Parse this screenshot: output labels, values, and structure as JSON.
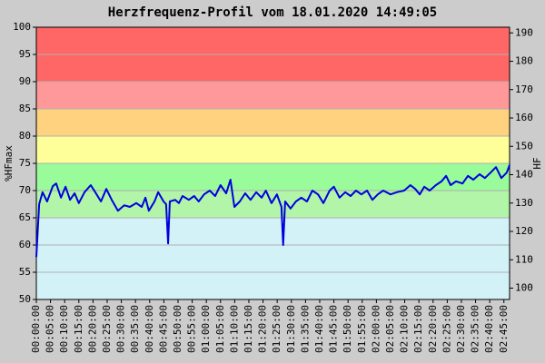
{
  "chart_data": {
    "type": "line",
    "title": "Herzfrequenz-Profil vom 18.01.2020 14:49:05",
    "ylabel": "%HFmax",
    "y2label": "HF",
    "xlim": [
      0,
      167
    ],
    "ylim": [
      50,
      100
    ],
    "yticks": [
      50,
      55,
      60,
      65,
      70,
      75,
      80,
      85,
      90,
      95,
      100
    ],
    "y2lim": [
      96,
      192
    ],
    "y2ticks": [
      100,
      110,
      120,
      130,
      140,
      150,
      160,
      170,
      180,
      190
    ],
    "grid": true,
    "bands": [
      {
        "from": 50,
        "to": 65,
        "color": "#d2f2f8"
      },
      {
        "from": 65,
        "to": 70,
        "color": "#b2f5a8"
      },
      {
        "from": 70,
        "to": 75,
        "color": "#99fb99"
      },
      {
        "from": 75,
        "to": 80,
        "color": "#ffff99"
      },
      {
        "from": 80,
        "to": 85,
        "color": "#ffd27f"
      },
      {
        "from": 85,
        "to": 90,
        "color": "#ff9999"
      },
      {
        "from": 90,
        "to": 100,
        "color": "#ff6666"
      }
    ],
    "xticks": [
      {
        "value": 0,
        "label": "00:00:00"
      },
      {
        "value": 5,
        "label": "00:05:00"
      },
      {
        "value": 10,
        "label": "00:10:00"
      },
      {
        "value": 15,
        "label": "00:15:00"
      },
      {
        "value": 20,
        "label": "00:20:00"
      },
      {
        "value": 25,
        "label": "00:25:00"
      },
      {
        "value": 30,
        "label": "00:30:00"
      },
      {
        "value": 35,
        "label": "00:35:00"
      },
      {
        "value": 40,
        "label": "00:40:00"
      },
      {
        "value": 45,
        "label": "00:45:00"
      },
      {
        "value": 50,
        "label": "00:50:00"
      },
      {
        "value": 55,
        "label": "00:55:00"
      },
      {
        "value": 60,
        "label": "01:00:00"
      },
      {
        "value": 65,
        "label": "01:05:00"
      },
      {
        "value": 70,
        "label": "01:10:00"
      },
      {
        "value": 75,
        "label": "01:15:00"
      },
      {
        "value": 80,
        "label": "01:20:00"
      },
      {
        "value": 85,
        "label": "01:25:00"
      },
      {
        "value": 90,
        "label": "01:30:00"
      },
      {
        "value": 95,
        "label": "01:35:00"
      },
      {
        "value": 100,
        "label": "01:40:00"
      },
      {
        "value": 105,
        "label": "01:45:00"
      },
      {
        "value": 110,
        "label": "01:50:00"
      },
      {
        "value": 115,
        "label": "01:55:00"
      },
      {
        "value": 120,
        "label": "02:00:00"
      },
      {
        "value": 125,
        "label": "02:05:00"
      },
      {
        "value": 130,
        "label": "02:10:00"
      },
      {
        "value": 135,
        "label": "02:15:00"
      },
      {
        "value": 140,
        "label": "02:20:00"
      },
      {
        "value": 145,
        "label": "02:25:00"
      },
      {
        "value": 150,
        "label": "02:30:00"
      },
      {
        "value": 155,
        "label": "02:35:00"
      },
      {
        "value": 160,
        "label": "02:40:00"
      },
      {
        "value": 165,
        "label": "02:45:00"
      }
    ],
    "x": [
      0,
      1,
      2.2,
      3.8,
      5.8,
      7,
      8.7,
      10.3,
      11.9,
      13.5,
      15,
      17,
      19.2,
      20.8,
      22.8,
      24.7,
      26.6,
      28.8,
      31,
      33,
      35.3,
      37.2,
      38.5,
      39.7,
      41.7,
      43,
      44.9,
      45.8,
      46.5,
      47.1,
      49,
      50.3,
      51.6,
      53.8,
      55.7,
      57.3,
      59.2,
      61.2,
      63.1,
      65,
      67,
      68.5,
      69.9,
      71.8,
      73.7,
      75.6,
      77.6,
      79.5,
      81,
      83,
      84.9,
      86.5,
      87.1,
      87.8,
      89.7,
      91.6,
      93.5,
      95.5,
      97.4,
      99.4,
      101.3,
      103.5,
      105,
      107,
      109,
      110.9,
      112.8,
      114.7,
      116.7,
      118.6,
      120.5,
      122.4,
      125,
      127.2,
      129.8,
      132,
      133.7,
      135.3,
      136.9,
      138.8,
      141,
      143,
      144.6,
      146.2,
      148.1,
      150.4,
      152.3,
      154.2,
      156.4,
      158.3,
      160.3,
      162.2,
      164.1,
      166,
      167
    ],
    "series": [
      {
        "color": "#0000dd",
        "values": [
          57.8,
          67.5,
          69.7,
          68,
          70.8,
          71.3,
          68.7,
          70.7,
          68.3,
          69.5,
          67.7,
          69.7,
          71,
          69.7,
          68,
          70.3,
          68.3,
          66.3,
          67.3,
          67,
          67.7,
          67,
          68.7,
          66.3,
          68,
          69.7,
          68,
          67.5,
          60.3,
          68,
          68.3,
          67.7,
          69,
          68.3,
          69,
          68,
          69.3,
          70,
          69,
          71,
          69.5,
          72,
          67,
          68,
          69.5,
          68.3,
          69.7,
          68.7,
          70,
          67.7,
          69.3,
          67,
          60,
          68,
          66.7,
          68,
          68.7,
          68,
          70,
          69.3,
          67.7,
          70,
          70.7,
          68.7,
          69.7,
          69,
          70,
          69.3,
          70,
          68.3,
          69.3,
          70,
          69.3,
          69.7,
          70,
          71,
          70.3,
          69.3,
          70.7,
          70,
          71,
          71.7,
          72.7,
          71,
          71.7,
          71.3,
          72.7,
          72,
          73,
          72.3,
          73.3,
          74.3,
          72.3,
          73.3,
          74.7
        ]
      }
    ]
  }
}
